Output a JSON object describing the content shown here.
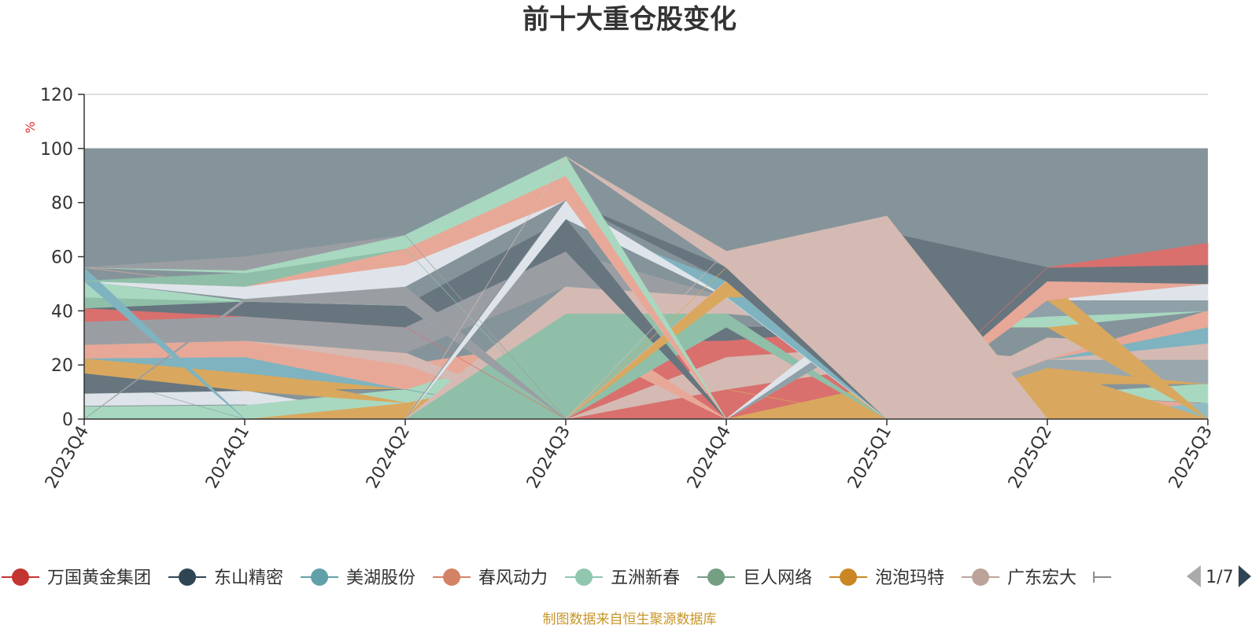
{
  "chart_data": {
    "type": "area",
    "title": "前十大重仓股变化",
    "ylabel": "%",
    "ylim": [
      0,
      120
    ],
    "yticks": [
      0,
      20,
      40,
      60,
      80,
      100,
      120
    ],
    "grid": true,
    "x": [
      "2023Q4",
      "2024Q1",
      "2024Q2",
      "2024Q3",
      "2024Q4",
      "2025Q1",
      "2025Q2",
      "2025Q3"
    ],
    "others_color": "#85949a",
    "bands": [
      {
        "color": "#dfe4ea",
        "lower": [
          5,
          5.5,
          0,
          0,
          0,
          0,
          0,
          0
        ],
        "upper": [
          9.5,
          10.5,
          0,
          0,
          0,
          0,
          0,
          0
        ]
      },
      {
        "color": "#67757f",
        "lower": [
          0,
          0,
          0,
          0,
          0,
          0,
          0,
          0
        ],
        "upper": [
          0,
          0,
          0,
          6.5,
          0,
          0,
          0,
          0
        ]
      },
      {
        "color": "#d9a85e",
        "lower": [
          0,
          0,
          0,
          6.5,
          0,
          0,
          0,
          0
        ],
        "upper": [
          0,
          0,
          6,
          18,
          11,
          13,
          0,
          0
        ]
      },
      {
        "color": "#d9706e",
        "lower": [
          0,
          0,
          0,
          0,
          0,
          0,
          0,
          0
        ],
        "upper": [
          0,
          0,
          0,
          0,
          0,
          0,
          5,
          0
        ]
      },
      {
        "color": "#e8a898",
        "lower": [
          0,
          0,
          0,
          0,
          0,
          0,
          5,
          0
        ],
        "upper": [
          0,
          0,
          0,
          0,
          0,
          0,
          9,
          5.5
        ]
      },
      {
        "color": "#8fbcc4",
        "lower": [
          0,
          0,
          0,
          0,
          0,
          0,
          0,
          0
        ],
        "upper": [
          0,
          0,
          0,
          0,
          0,
          0,
          0,
          6
        ]
      },
      {
        "color": "#a8d8c0",
        "lower": [
          0,
          0,
          6,
          18,
          11,
          0,
          9,
          6
        ],
        "upper": [
          4.5,
          5,
          11,
          29,
          16,
          0,
          9,
          13
        ]
      },
      {
        "color": "#d9706e",
        "lower": [
          0,
          0,
          0,
          0,
          0,
          0,
          0,
          0
        ],
        "upper": [
          0,
          0,
          0,
          0,
          11,
          20,
          0,
          0
        ]
      },
      {
        "color": "#d9a85e",
        "lower": [
          10,
          11,
          11,
          29,
          11,
          0,
          13,
          13
        ],
        "upper": [
          17,
          17,
          11,
          29,
          11,
          0,
          19,
          13
        ]
      },
      {
        "color": "#d9a85e",
        "lower": [
          0,
          0,
          0,
          0,
          0,
          0,
          0,
          0
        ],
        "upper": [
          0,
          0,
          0,
          0,
          0,
          13,
          19,
          0
        ]
      },
      {
        "color": "#9aa7ad",
        "lower": [
          0,
          0,
          0,
          0,
          0,
          0,
          19,
          13
        ],
        "upper": [
          0,
          0,
          0,
          0,
          0,
          0,
          22,
          22
        ]
      },
      {
        "color": "#8fa7b0",
        "lower": [
          17,
          0,
          0,
          0,
          0,
          0,
          0,
          0
        ],
        "upper": [
          17,
          0,
          0,
          0,
          0,
          0,
          0,
          0
        ]
      },
      {
        "color": "#67757f",
        "lower": [
          9.5,
          10.5,
          11,
          0,
          0,
          0,
          0,
          0
        ],
        "upper": [
          17,
          10.5,
          11,
          0,
          0,
          0,
          0,
          0
        ]
      },
      {
        "color": "#d9a85e",
        "lower": [
          17,
          10.5,
          6,
          0,
          0,
          0,
          0,
          0
        ],
        "upper": [
          22.5,
          17,
          6,
          0,
          0,
          0,
          0,
          0
        ]
      },
      {
        "color": "#7fb3bf",
        "lower": [
          22.5,
          17,
          11,
          0,
          0,
          0,
          0,
          0
        ],
        "upper": [
          22.5,
          23,
          11,
          0,
          0,
          0,
          0,
          0
        ]
      },
      {
        "color": "#e8a898",
        "lower": [
          22.5,
          23,
          11,
          29,
          0,
          0,
          0,
          0
        ],
        "upper": [
          27.5,
          29,
          20,
          29,
          0,
          0,
          0,
          0
        ]
      },
      {
        "color": "#d4bab3",
        "lower": [
          0,
          0,
          0,
          0,
          11,
          20,
          22,
          22
        ],
        "upper": [
          0,
          0,
          0,
          0,
          23,
          27,
          22,
          22
        ]
      },
      {
        "color": "#d9706e",
        "lower": [
          0,
          0,
          0,
          0,
          23,
          27,
          0,
          0
        ],
        "upper": [
          0,
          0,
          0,
          29,
          29,
          34,
          0,
          0
        ]
      },
      {
        "color": "#67757f",
        "lower": [
          0,
          0,
          0,
          29,
          29,
          34,
          0,
          0
        ],
        "upper": [
          0,
          0,
          0,
          29,
          34,
          34,
          0,
          0
        ]
      },
      {
        "color": "#d4bab3",
        "lower": [
          27.5,
          29,
          20,
          0,
          0,
          0,
          22,
          22
        ],
        "upper": [
          27.5,
          29,
          24.5,
          0,
          0,
          0,
          30,
          28
        ]
      },
      {
        "color": "#7fb3bf",
        "lower": [
          0,
          0,
          0,
          0,
          0,
          0,
          22,
          28
        ],
        "upper": [
          0,
          0,
          0,
          0,
          0,
          0,
          22,
          34
        ]
      },
      {
        "color": "#e8a898",
        "lower": [
          0,
          0,
          0,
          0,
          0,
          0,
          22,
          34
        ],
        "upper": [
          0,
          0,
          0,
          0,
          0,
          0,
          22,
          40
        ]
      },
      {
        "color": "#e8a898",
        "lower": [
          0,
          0,
          0,
          29,
          0,
          0,
          0,
          0
        ],
        "upper": [
          0,
          0,
          0,
          39,
          0,
          0,
          0,
          0
        ]
      },
      {
        "color": "#8fbfa8",
        "lower": [
          0,
          0,
          0,
          0,
          34,
          0,
          0,
          0
        ],
        "upper": [
          0,
          0,
          0,
          39,
          39,
          0,
          0,
          0
        ]
      },
      {
        "color": "#d4bab3",
        "lower": [
          0,
          0,
          0,
          39,
          39,
          34,
          0,
          0
        ],
        "upper": [
          0,
          0,
          0,
          49,
          45,
          34,
          0,
          0
        ]
      },
      {
        "color": "#d9a85e",
        "lower": [
          0,
          0,
          0,
          0,
          0,
          34,
          34,
          0
        ],
        "upper": [
          0,
          0,
          0,
          0,
          0,
          36,
          44,
          0
        ]
      },
      {
        "color": "#a8d8c0",
        "lower": [
          0,
          0,
          0,
          0,
          0,
          34,
          34,
          40
        ],
        "upper": [
          0,
          0,
          0,
          0,
          0,
          36,
          38,
          40
        ]
      },
      {
        "color": "#8fa0a8",
        "lower": [
          0,
          0,
          0,
          0,
          0,
          34,
          38,
          40
        ],
        "upper": [
          0,
          0,
          0,
          0,
          0,
          40,
          44,
          44
        ]
      },
      {
        "color": "#dfe4ea",
        "lower": [
          0,
          0,
          0,
          0,
          0,
          40,
          44,
          44
        ],
        "upper": [
          0,
          0,
          0,
          0,
          0,
          47,
          44,
          50
        ]
      },
      {
        "color": "#9a9ea3",
        "lower": [
          27.5,
          29,
          24.5,
          49,
          45,
          0,
          0,
          0
        ],
        "upper": [
          36,
          38,
          34,
          62,
          45,
          0,
          0,
          0
        ]
      },
      {
        "color": "#d9706e",
        "lower": [
          36,
          38,
          34,
          0,
          0,
          0,
          0,
          0
        ],
        "upper": [
          41,
          38,
          34,
          0,
          0,
          0,
          0,
          0
        ]
      },
      {
        "color": "#67757f",
        "lower": [
          41,
          38,
          34,
          62,
          0,
          0,
          0,
          0
        ],
        "upper": [
          41,
          43.5,
          42,
          74,
          0,
          0,
          0,
          0
        ]
      },
      {
        "color": "#8fbfa8",
        "lower": [
          41,
          43.5,
          42,
          0,
          0,
          0,
          0,
          0
        ],
        "upper": [
          45,
          43.5,
          42,
          0,
          0,
          0,
          0,
          0
        ]
      },
      {
        "color": "#a8d8c0",
        "lower": [
          45,
          43.5,
          42,
          0,
          0,
          0,
          0,
          0
        ],
        "upper": [
          51,
          43.5,
          42,
          0,
          0,
          0,
          0,
          0
        ]
      },
      {
        "color": "#9a9ea3",
        "lower": [
          0,
          43.5,
          42,
          0,
          0,
          0,
          0,
          0
        ],
        "upper": [
          0,
          44.5,
          49,
          0,
          0,
          0,
          0,
          0
        ]
      },
      {
        "color": "#7fb3bf",
        "lower": [
          0,
          0,
          0,
          74,
          45,
          0,
          0,
          0
        ],
        "upper": [
          0,
          0,
          0,
          74,
          51,
          0,
          0,
          0
        ]
      },
      {
        "color": "#dfe4ea",
        "lower": [
          0,
          0,
          0,
          74,
          45,
          0,
          0,
          0
        ],
        "upper": [
          0,
          0,
          0,
          81,
          45,
          0,
          0,
          0
        ]
      },
      {
        "color": "#d9a85e",
        "lower": [
          0,
          0,
          0,
          0,
          45,
          47,
          44,
          0
        ],
        "upper": [
          0,
          0,
          0,
          0,
          51,
          54,
          51,
          0
        ]
      },
      {
        "color": "#d4bab3",
        "lower": [
          0,
          0,
          0,
          0,
          51,
          54,
          51,
          50
        ],
        "upper": [
          0,
          0,
          0,
          0,
          51,
          61,
          51,
          50
        ]
      },
      {
        "color": "#e8a898",
        "lower": [
          0,
          0,
          0,
          0,
          51,
          0,
          44,
          50
        ],
        "upper": [
          0,
          0,
          0,
          0,
          51,
          0,
          51,
          50
        ]
      },
      {
        "color": "#dfe4ea",
        "lower": [
          51,
          44.5,
          49,
          81,
          0,
          0,
          0,
          0
        ],
        "upper": [
          51,
          49,
          57,
          81,
          0,
          0,
          0,
          0
        ]
      },
      {
        "color": "#67757f",
        "lower": [
          0,
          0,
          0,
          81,
          51,
          0,
          51,
          50
        ],
        "upper": [
          0,
          0,
          0,
          81,
          56,
          69,
          56,
          57
        ]
      },
      {
        "color": "#d9706e",
        "lower": [
          0,
          0,
          0,
          0,
          0,
          0,
          56,
          57
        ],
        "upper": [
          0,
          0,
          0,
          0,
          0,
          0,
          56,
          65
        ]
      },
      {
        "color": "#d9a85e",
        "lower": [
          0,
          0,
          0,
          0,
          56,
          69,
          0,
          0
        ],
        "upper": [
          0,
          0,
          0,
          0,
          56,
          75,
          0,
          0
        ]
      },
      {
        "color": "#7fb3bf",
        "lower": [
          51,
          0,
          0,
          0,
          0,
          0,
          0,
          0
        ],
        "upper": [
          56,
          0,
          0,
          0,
          0,
          0,
          0,
          0
        ]
      },
      {
        "color": "#e8a898",
        "lower": [
          56,
          49,
          57,
          81,
          0,
          0,
          0,
          0
        ],
        "upper": [
          56,
          49,
          63,
          90,
          0,
          0,
          0,
          0
        ]
      },
      {
        "color": "#8fbfa8",
        "lower": [
          51,
          49,
          63,
          0,
          0,
          0,
          0,
          0
        ],
        "upper": [
          51,
          54,
          63,
          0,
          0,
          0,
          0,
          0
        ]
      },
      {
        "color": "#a8d8c0",
        "lower": [
          56,
          54,
          63,
          90,
          0,
          0,
          0,
          0
        ],
        "upper": [
          56,
          55,
          68,
          97,
          0,
          0,
          0,
          0
        ]
      },
      {
        "color": "#9a9ea3",
        "lower": [
          56,
          55,
          68,
          0,
          0,
          0,
          0,
          0
        ],
        "upper": [
          56,
          60,
          68,
          0,
          0,
          0,
          0,
          0
        ]
      },
      {
        "color": "#d4bab3",
        "lower": [
          0,
          0,
          0,
          97,
          56,
          0,
          0,
          0
        ],
        "upper": [
          0,
          0,
          0,
          97,
          62,
          0,
          0,
          0
        ]
      },
      {
        "color": "#d4bab3",
        "lower": [
          0,
          0,
          0,
          0,
          62,
          0,
          0,
          0
        ],
        "upper": [
          0,
          0,
          0,
          0,
          62,
          75,
          0,
          0
        ]
      }
    ]
  },
  "legend": {
    "items": [
      {
        "label": "万国黄金集团",
        "color": "#c23531"
      },
      {
        "label": "东山精密",
        "color": "#2f4554"
      },
      {
        "label": "美湖股份",
        "color": "#61a0a8"
      },
      {
        "label": "春风动力",
        "color": "#d48265"
      },
      {
        "label": "五洲新春",
        "color": "#91c7ae"
      },
      {
        "label": "巨人网络",
        "color": "#749f83"
      },
      {
        "label": "泡泡玛特",
        "color": "#ca8622"
      },
      {
        "label": "广东宏大",
        "color": "#bda29a"
      }
    ],
    "page": "1/7",
    "prev_color": "#aaaaaa",
    "next_color": "#2f4554"
  },
  "footer": "制图数据来自恒生聚源数据库"
}
